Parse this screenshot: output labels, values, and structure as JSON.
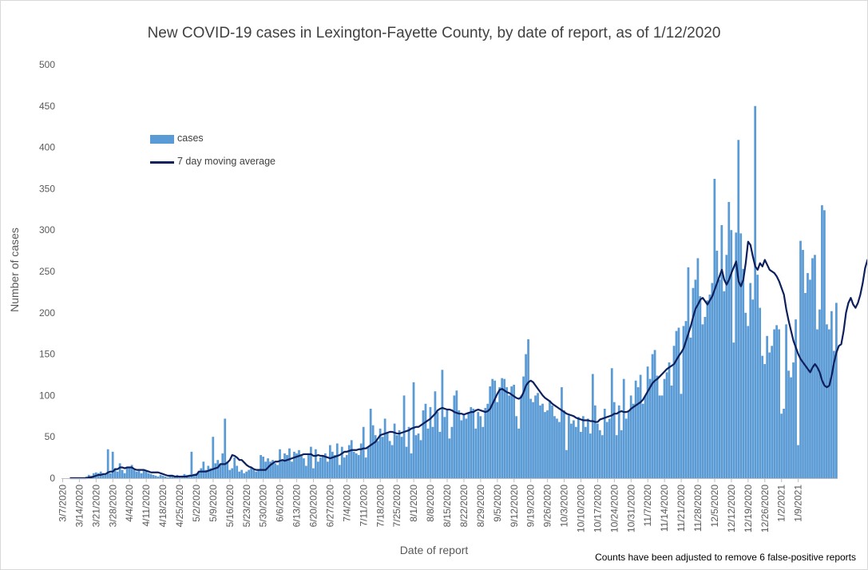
{
  "chart_data": {
    "type": "bar",
    "title": "New COVID-19 cases in Lexington-Fayette County, by date of report, as of 1/12/2020",
    "xlabel": "Date of report",
    "ylabel": "Number of cases",
    "ylim": [
      0,
      500
    ],
    "yticks": [
      0,
      50,
      100,
      150,
      200,
      250,
      300,
      350,
      400,
      450,
      500
    ],
    "grid": false,
    "legend_position": "top-left",
    "footnote": "Counts have been adjusted to remove 6 false-positive reports",
    "x_start": "3/7/2020",
    "x_end": "1/12/2021",
    "x_tick_labels": [
      "3/7/2020",
      "3/14/2020",
      "3/21/2020",
      "3/28/2020",
      "4/4/2020",
      "4/11/2020",
      "4/18/2020",
      "4/25/2020",
      "5/2/2020",
      "5/9/2020",
      "5/16/2020",
      "5/23/2020",
      "5/30/2020",
      "6/6/2020",
      "6/13/2020",
      "6/20/2020",
      "6/27/2020",
      "7/4/2020",
      "7/11/2020",
      "7/18/2020",
      "7/25/2020",
      "8/1/2020",
      "8/8/2020",
      "8/15/2020",
      "8/22/2020",
      "8/29/2020",
      "9/5/2020",
      "9/12/2020",
      "9/19/2020",
      "9/26/2020",
      "10/3/2020",
      "10/10/2020",
      "10/17/2020",
      "10/24/2020",
      "10/31/2020",
      "11/7/2020",
      "11/14/2020",
      "11/21/2020",
      "11/28/2020",
      "12/5/2020",
      "12/12/2020",
      "12/19/2020",
      "12/26/2020",
      "1/2/2021",
      "1/9/2021"
    ],
    "series": [
      {
        "name": "cases",
        "kind": "bar",
        "color": "#5b9bd5",
        "values": [
          0,
          0,
          0,
          0,
          0,
          1,
          0,
          0,
          0,
          1,
          2,
          4,
          3,
          6,
          7,
          6,
          8,
          5,
          4,
          35,
          6,
          32,
          12,
          8,
          18,
          10,
          6,
          14,
          12,
          16,
          10,
          8,
          9,
          6,
          10,
          8,
          6,
          5,
          4,
          3,
          2,
          4,
          3,
          2,
          1,
          2,
          2,
          3,
          4,
          2,
          3,
          5,
          4,
          4,
          32,
          5,
          6,
          8,
          12,
          20,
          10,
          15,
          12,
          50,
          18,
          22,
          16,
          30,
          72,
          20,
          10,
          12,
          25,
          15,
          8,
          10,
          6,
          8,
          10,
          12,
          10,
          8,
          10,
          28,
          26,
          20,
          24,
          20,
          22,
          18,
          16,
          35,
          22,
          30,
          28,
          36,
          20,
          32,
          30,
          34,
          28,
          24,
          15,
          30,
          38,
          12,
          35,
          20,
          25,
          28,
          30,
          20,
          40,
          32,
          28,
          42,
          16,
          38,
          25,
          28,
          40,
          46,
          32,
          30,
          28,
          42,
          62,
          25,
          38,
          84,
          64,
          52,
          45,
          60,
          50,
          72,
          55,
          45,
          40,
          66,
          52,
          58,
          50,
          100,
          38,
          62,
          30,
          116,
          52,
          54,
          46,
          82,
          90,
          60,
          86,
          62,
          105,
          80,
          56,
          131,
          74,
          82,
          48,
          62,
          100,
          106,
          82,
          70,
          78,
          72,
          80,
          86,
          84,
          60,
          80,
          75,
          62,
          85,
          90,
          111,
          120,
          118,
          92,
          110,
          121,
          120,
          110,
          100,
          111,
          113,
          75,
          60,
          100,
          123,
          150,
          168,
          96,
          92,
          100,
          103,
          88,
          90,
          80,
          82,
          94,
          88,
          75,
          72,
          68,
          110,
          82,
          34,
          76,
          66,
          70,
          62,
          74,
          56,
          75,
          62,
          72,
          54,
          126,
          88,
          66,
          58,
          52,
          84,
          68,
          72,
          133,
          92,
          52,
          88,
          58,
          120,
          72,
          80,
          100,
          90,
          118,
          110,
          125,
          90,
          100,
          135,
          120,
          150,
          155,
          124,
          100,
          100,
          120,
          128,
          140,
          112,
          160,
          178,
          182,
          102,
          184,
          190,
          255,
          170,
          230,
          240,
          266,
          220,
          186,
          195,
          215,
          222,
          236,
          362,
          275,
          240,
          306,
          226,
          270,
          334,
          300,
          164,
          297,
          409,
          296,
          253,
          200,
          184,
          236,
          216,
          450,
          246,
          206,
          148,
          138,
          172,
          152,
          160,
          180,
          185,
          180,
          78,
          84,
          186,
          130,
          122,
          140,
          192,
          40,
          287,
          276,
          224,
          248,
          240,
          266,
          270,
          180,
          204,
          330,
          324,
          186,
          180,
          202,
          154,
          212
        ]
      },
      {
        "name": "7 day moving average",
        "kind": "line",
        "color": "#0d1f5c",
        "x_start_index": 3,
        "values": [
          0,
          0,
          0,
          0,
          0,
          0,
          0,
          0,
          1,
          1,
          2,
          3,
          4,
          4,
          5,
          5,
          7,
          8,
          8,
          11,
          11,
          13,
          13,
          12,
          13,
          13,
          13,
          11,
          10,
          10,
          10,
          10,
          9,
          8,
          7,
          7,
          7,
          7,
          6,
          5,
          4,
          3,
          3,
          3,
          2,
          2,
          2,
          2,
          2,
          2,
          3,
          3,
          4,
          4,
          8,
          8,
          8,
          8,
          9,
          10,
          11,
          12,
          13,
          17,
          17,
          17,
          19,
          22,
          28,
          27,
          25,
          22,
          22,
          19,
          16,
          14,
          13,
          11,
          10,
          10,
          10,
          10,
          10,
          13,
          16,
          18,
          20,
          20,
          21,
          22,
          21,
          22,
          23,
          24,
          25,
          26,
          27,
          28,
          29,
          29,
          29,
          29,
          27,
          27,
          28,
          27,
          27,
          26,
          25,
          24,
          25,
          26,
          27,
          28,
          30,
          32,
          32,
          33,
          34,
          34,
          34,
          35,
          35,
          36,
          36,
          38,
          40,
          42,
          44,
          48,
          52,
          53,
          54,
          55,
          56,
          56,
          55,
          54,
          54,
          55,
          56,
          57,
          58,
          60,
          61,
          62,
          62,
          64,
          66,
          68,
          70,
          72,
          75,
          78,
          82,
          84,
          85,
          84,
          83,
          83,
          82,
          80,
          79,
          78,
          78,
          77,
          78,
          79,
          80,
          80,
          82,
          83,
          82,
          81,
          80,
          81,
          84,
          90,
          96,
          102,
          107,
          108,
          106,
          104,
          103,
          101,
          99,
          97,
          96,
          98,
          104,
          112,
          116,
          118,
          116,
          112,
          108,
          104,
          100,
          97,
          95,
          93,
          90,
          88,
          86,
          84,
          82,
          80,
          78,
          77,
          76,
          75,
          73,
          72,
          71,
          70,
          70,
          70,
          69,
          69,
          68,
          68,
          71,
          72,
          73,
          74,
          75,
          76,
          78,
          78,
          80,
          81,
          80,
          80,
          81,
          84,
          86,
          88,
          90,
          92,
          95,
          100,
          105,
          110,
          115,
          118,
          120,
          123,
          126,
          129,
          132,
          134,
          136,
          138,
          143,
          148,
          152,
          157,
          166,
          175,
          184,
          195,
          205,
          210,
          216,
          218,
          214,
          210,
          215,
          220,
          228,
          236,
          244,
          252,
          240,
          234,
          240,
          248,
          255,
          262,
          238,
          232,
          240,
          260,
          286,
          282,
          268,
          256,
          252,
          260,
          256,
          264,
          258,
          252,
          250,
          248,
          244,
          238,
          230,
          222,
          204,
          190,
          178,
          166,
          158,
          150,
          144,
          140,
          136,
          132,
          128,
          134,
          138,
          134,
          128,
          118,
          112,
          110,
          112,
          124,
          140,
          152,
          160,
          162,
          178,
          200,
          212,
          218,
          210,
          206,
          212,
          222,
          236,
          254,
          264,
          258,
          246,
          238,
          236,
          234
        ]
      }
    ]
  }
}
